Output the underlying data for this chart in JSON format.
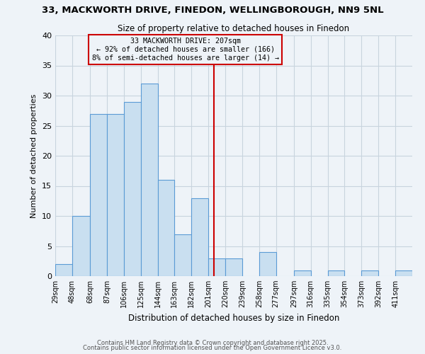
{
  "title": "33, MACKWORTH DRIVE, FINEDON, WELLINGBOROUGH, NN9 5NL",
  "subtitle": "Size of property relative to detached houses in Finedon",
  "xlabel": "Distribution of detached houses by size in Finedon",
  "ylabel": "Number of detached properties",
  "bin_labels": [
    "29sqm",
    "48sqm",
    "68sqm",
    "87sqm",
    "106sqm",
    "125sqm",
    "144sqm",
    "163sqm",
    "182sqm",
    "201sqm",
    "220sqm",
    "239sqm",
    "258sqm",
    "277sqm",
    "297sqm",
    "316sqm",
    "335sqm",
    "354sqm",
    "373sqm",
    "392sqm",
    "411sqm"
  ],
  "bin_edges": [
    29,
    48,
    68,
    87,
    106,
    125,
    144,
    163,
    182,
    201,
    220,
    239,
    258,
    277,
    297,
    316,
    335,
    354,
    373,
    392,
    411
  ],
  "bar_heights": [
    2,
    10,
    27,
    27,
    29,
    32,
    16,
    7,
    13,
    3,
    3,
    0,
    4,
    0,
    1,
    0,
    1,
    0,
    1,
    0,
    1
  ],
  "bar_color": "#c9dff0",
  "bar_edge_color": "#5b9bd5",
  "grid_color": "#c8d4de",
  "background_color": "#eef3f8",
  "vline_x": 207,
  "vline_color": "#cc0000",
  "annotation_line1": "33 MACKWORTH DRIVE: 207sqm",
  "annotation_line2": "← 92% of detached houses are smaller (166)",
  "annotation_line3": "8% of semi-detached houses are larger (14) →",
  "ylim": [
    0,
    40
  ],
  "yticks": [
    0,
    5,
    10,
    15,
    20,
    25,
    30,
    35,
    40
  ],
  "footer_line1": "Contains HM Land Registry data © Crown copyright and database right 2025.",
  "footer_line2": "Contains public sector information licensed under the Open Government Licence v3.0."
}
